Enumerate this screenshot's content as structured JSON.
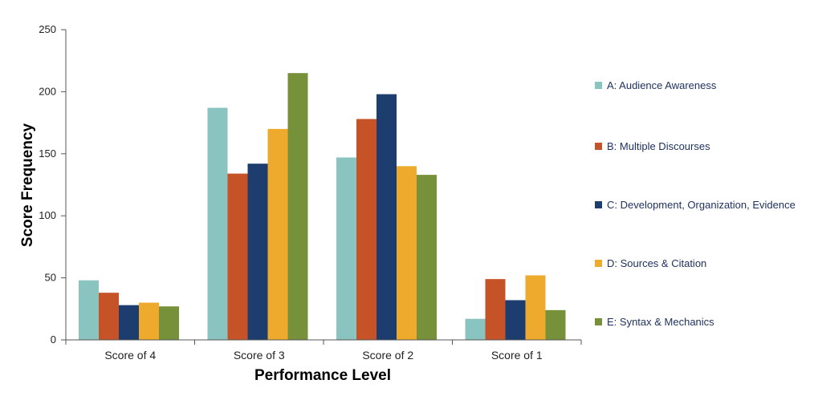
{
  "chart_data": {
    "type": "bar",
    "title": "",
    "xlabel": "Performance Level",
    "ylabel": "Score Frequency",
    "ylim": [
      0,
      250
    ],
    "yticks": [
      0,
      50,
      100,
      150,
      200,
      250
    ],
    "grid": false,
    "legend_position": "right",
    "categories": [
      "Score of 4",
      "Score of 3",
      "Score of 2",
      "Score of 1"
    ],
    "series": [
      {
        "name": "A: Audience Awareness",
        "color": "#89c4c0",
        "values": [
          48,
          187,
          147,
          17
        ]
      },
      {
        "name": "B: Multiple Discourses",
        "color": "#c65228",
        "values": [
          38,
          134,
          178,
          49
        ]
      },
      {
        "name": "C: Development, Organization, Evidence",
        "color": "#1c3d6e",
        "values": [
          28,
          142,
          198,
          32
        ]
      },
      {
        "name": "D: Sources & Citation",
        "color": "#eeaa2c",
        "values": [
          30,
          170,
          140,
          52
        ]
      },
      {
        "name": "E: Syntax & Mechanics",
        "color": "#76913a",
        "values": [
          27,
          215,
          133,
          24
        ]
      }
    ]
  }
}
